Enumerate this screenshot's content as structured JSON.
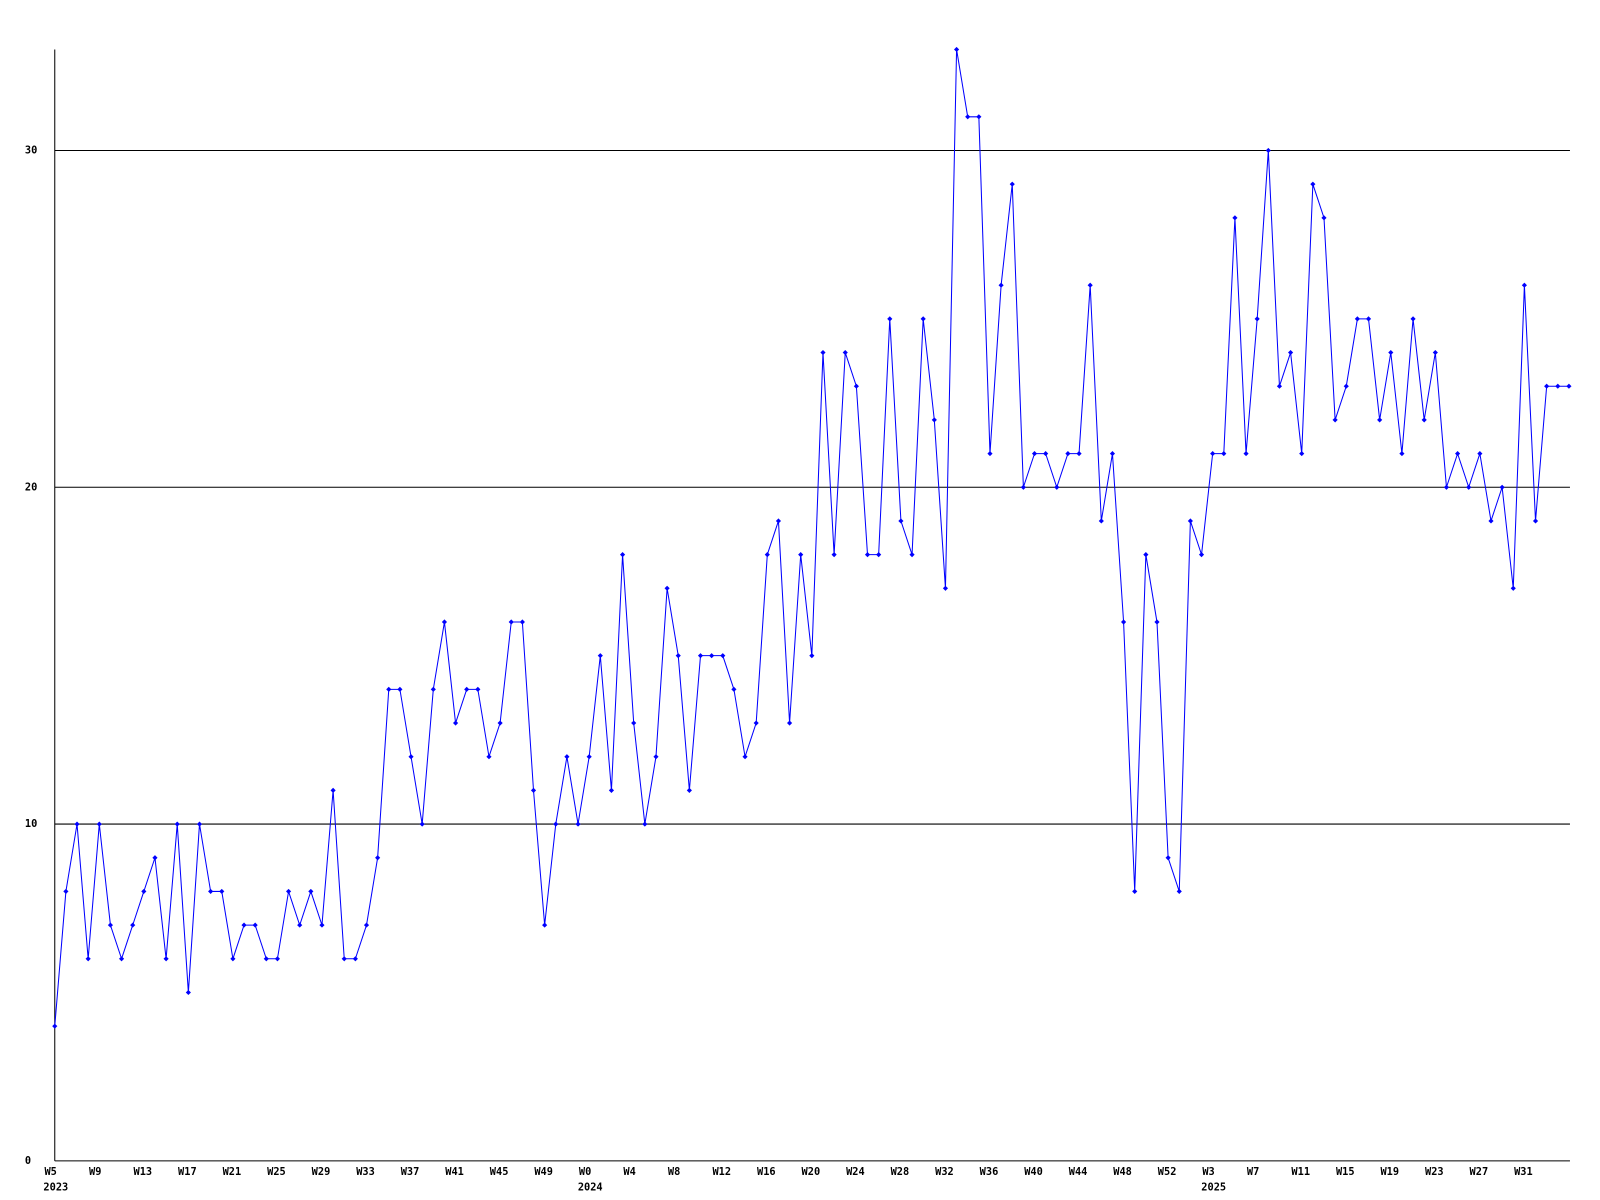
{
  "chart_data": {
    "type": "line",
    "categories": [
      "W5",
      null,
      null,
      null,
      "W9",
      null,
      null,
      null,
      "W13",
      null,
      null,
      null,
      "W17",
      null,
      null,
      null,
      "W21",
      null,
      null,
      null,
      "W25",
      null,
      null,
      null,
      "W29",
      null,
      null,
      null,
      "W33",
      null,
      null,
      null,
      "W37",
      null,
      null,
      null,
      "W41",
      null,
      null,
      null,
      "W45",
      null,
      null,
      null,
      "W49",
      null,
      null,
      null,
      "W0",
      null,
      null,
      null,
      "W4",
      null,
      null,
      null,
      "W8",
      null,
      null,
      null,
      "W12",
      null,
      null,
      null,
      "W16",
      null,
      null,
      null,
      "W20",
      null,
      null,
      null,
      "W24",
      null,
      null,
      null,
      "W28",
      null,
      null,
      null,
      "W32",
      null,
      null,
      null,
      "W36",
      null,
      null,
      null,
      "W40",
      null,
      null,
      null,
      "W44",
      null,
      null,
      null,
      "W48",
      null,
      null,
      null,
      "W52",
      null,
      null,
      null,
      "W3",
      null,
      null,
      null,
      "W7",
      null,
      null,
      null,
      "W11",
      null,
      null,
      null,
      "W15",
      null,
      null,
      null,
      "W19",
      null,
      null,
      null,
      "W23",
      null,
      null,
      null,
      "W27",
      null,
      null,
      null,
      "W31",
      null,
      null,
      null,
      null
    ],
    "year_labels": [
      "2023",
      null,
      null,
      null,
      null,
      null,
      null,
      null,
      null,
      null,
      null,
      null,
      null,
      null,
      null,
      null,
      null,
      null,
      null,
      null,
      null,
      null,
      null,
      null,
      null,
      null,
      null,
      null,
      null,
      null,
      null,
      null,
      null,
      null,
      null,
      null,
      null,
      null,
      null,
      null,
      null,
      null,
      null,
      null,
      null,
      null,
      null,
      null,
      "2024",
      null,
      null,
      null,
      null,
      null,
      null,
      null,
      null,
      null,
      null,
      null,
      null,
      null,
      null,
      null,
      null,
      null,
      null,
      null,
      null,
      null,
      null,
      null,
      null,
      null,
      null,
      null,
      null,
      null,
      null,
      null,
      null,
      null,
      null,
      null,
      null,
      null,
      null,
      null,
      null,
      null,
      null,
      null,
      null,
      null,
      null,
      null,
      null,
      null,
      null,
      null,
      null,
      null,
      null,
      null,
      "2025",
      null,
      null,
      null,
      null,
      null,
      null,
      null,
      null,
      null,
      null,
      null,
      null,
      null,
      null,
      null,
      null,
      null,
      null,
      null,
      null,
      null,
      null,
      null,
      null,
      null,
      null,
      null,
      null,
      null,
      null,
      null
    ],
    "values": [
      4,
      8,
      10,
      6,
      10,
      7,
      6,
      7,
      8,
      9,
      6,
      10,
      5,
      10,
      8,
      8,
      6,
      7,
      7,
      6,
      6,
      8,
      7,
      8,
      7,
      11,
      6,
      6,
      7,
      9,
      14,
      14,
      12,
      10,
      14,
      16,
      13,
      14,
      14,
      12,
      13,
      16,
      16,
      11,
      7,
      10,
      12,
      10,
      12,
      15,
      11,
      18,
      13,
      10,
      12,
      17,
      15,
      11,
      15,
      15,
      15,
      14,
      12,
      13,
      18,
      19,
      13,
      18,
      15,
      24,
      18,
      24,
      23,
      18,
      18,
      25,
      19,
      18,
      25,
      22,
      17,
      33,
      31,
      31,
      21,
      26,
      29,
      20,
      21,
      21,
      20,
      21,
      21,
      26,
      19,
      21,
      16,
      8,
      18,
      16,
      9,
      8,
      19,
      18,
      21,
      21,
      28,
      21,
      25,
      30,
      23,
      24,
      21,
      29,
      28,
      22,
      23,
      25,
      25,
      22,
      24,
      21,
      25,
      22,
      24,
      20,
      21,
      20,
      21,
      19,
      20,
      17,
      26,
      19,
      23,
      23,
      23
    ],
    "color": "#0000ff",
    "ylim": [
      0,
      33
    ],
    "yticks": [
      0,
      10,
      20,
      30
    ],
    "grid": true
  }
}
